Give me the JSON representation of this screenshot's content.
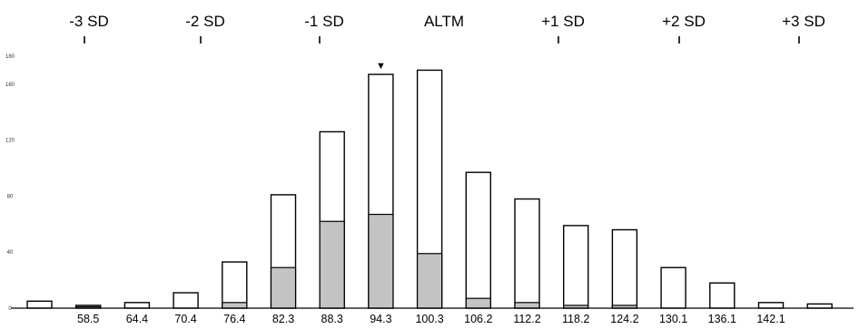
{
  "chart_data": {
    "type": "bar",
    "title": "",
    "xlabel": "",
    "ylabel": "",
    "ylim": [
      0,
      180
    ],
    "y_ticks": [
      {
        "value": 0,
        "label": "0"
      },
      {
        "value": 40,
        "label": "40"
      },
      {
        "value": 80,
        "label": "80"
      },
      {
        "value": 120,
        "label": "120"
      },
      {
        "value": 160,
        "label": "160"
      },
      {
        "value": 180,
        "label": "180"
      }
    ],
    "x_tick_labels": [
      "58.5",
      "64.4",
      "70.4",
      "76.4",
      "82.3",
      "88.3",
      "94.3",
      "100.3",
      "106.2",
      "112.2",
      "118.2",
      "124.2",
      "130.1",
      "136.1",
      "142.1"
    ],
    "series": [
      {
        "values": [
          5,
          2,
          4,
          11,
          33,
          81,
          126,
          167,
          170,
          97,
          78,
          59,
          56,
          29,
          18,
          4,
          3
        ]
      },
      {
        "values": [
          0,
          1,
          0,
          0,
          4,
          29,
          62,
          67,
          39,
          7,
          4,
          2,
          2,
          0,
          0,
          0,
          0
        ]
      }
    ],
    "sd_markers": [
      "-3 SD",
      "-2 SD",
      "-1 SD",
      "ALTM",
      "+1 SD",
      "+2 SD",
      "+3 SD"
    ],
    "highlight_marker": {
      "symbol": "▼",
      "bar_index": 7
    },
    "colors": {
      "outline": "#000000",
      "fill_open": "#ffffff",
      "fill_shaded": "#c3c3c3"
    }
  }
}
